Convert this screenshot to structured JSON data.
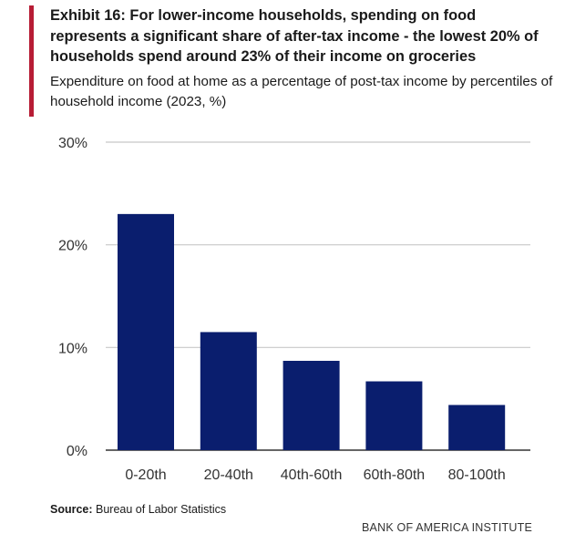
{
  "header": {
    "title": "Exhibit 16: For lower-income households, spending on food represents a significant share of after-tax income - the lowest 20% of households spend around 23% of their income on groceries",
    "subtitle": "Expenditure on food at home as a percentage of post-tax income by percentiles of household income (2023, %)",
    "accent_color": "#b71c35"
  },
  "chart_data": {
    "type": "bar",
    "categories": [
      "0-20th",
      "20-40th",
      "40th-60th",
      "60th-80th",
      "80-100th"
    ],
    "values": [
      23,
      11.5,
      8.7,
      6.7,
      4.4
    ],
    "yticks": [
      "0%",
      "10%",
      "20%",
      "30%"
    ],
    "ytick_values": [
      0,
      10,
      20,
      30
    ],
    "ylim": [
      0,
      30
    ],
    "grid": true,
    "bar_color": "#0a1e6e",
    "grid_color": "#c8c8c8"
  },
  "footer": {
    "source_label": "Source:",
    "source_text": " Bureau of Labor Statistics",
    "brand": "BANK OF AMERICA INSTITUTE"
  }
}
